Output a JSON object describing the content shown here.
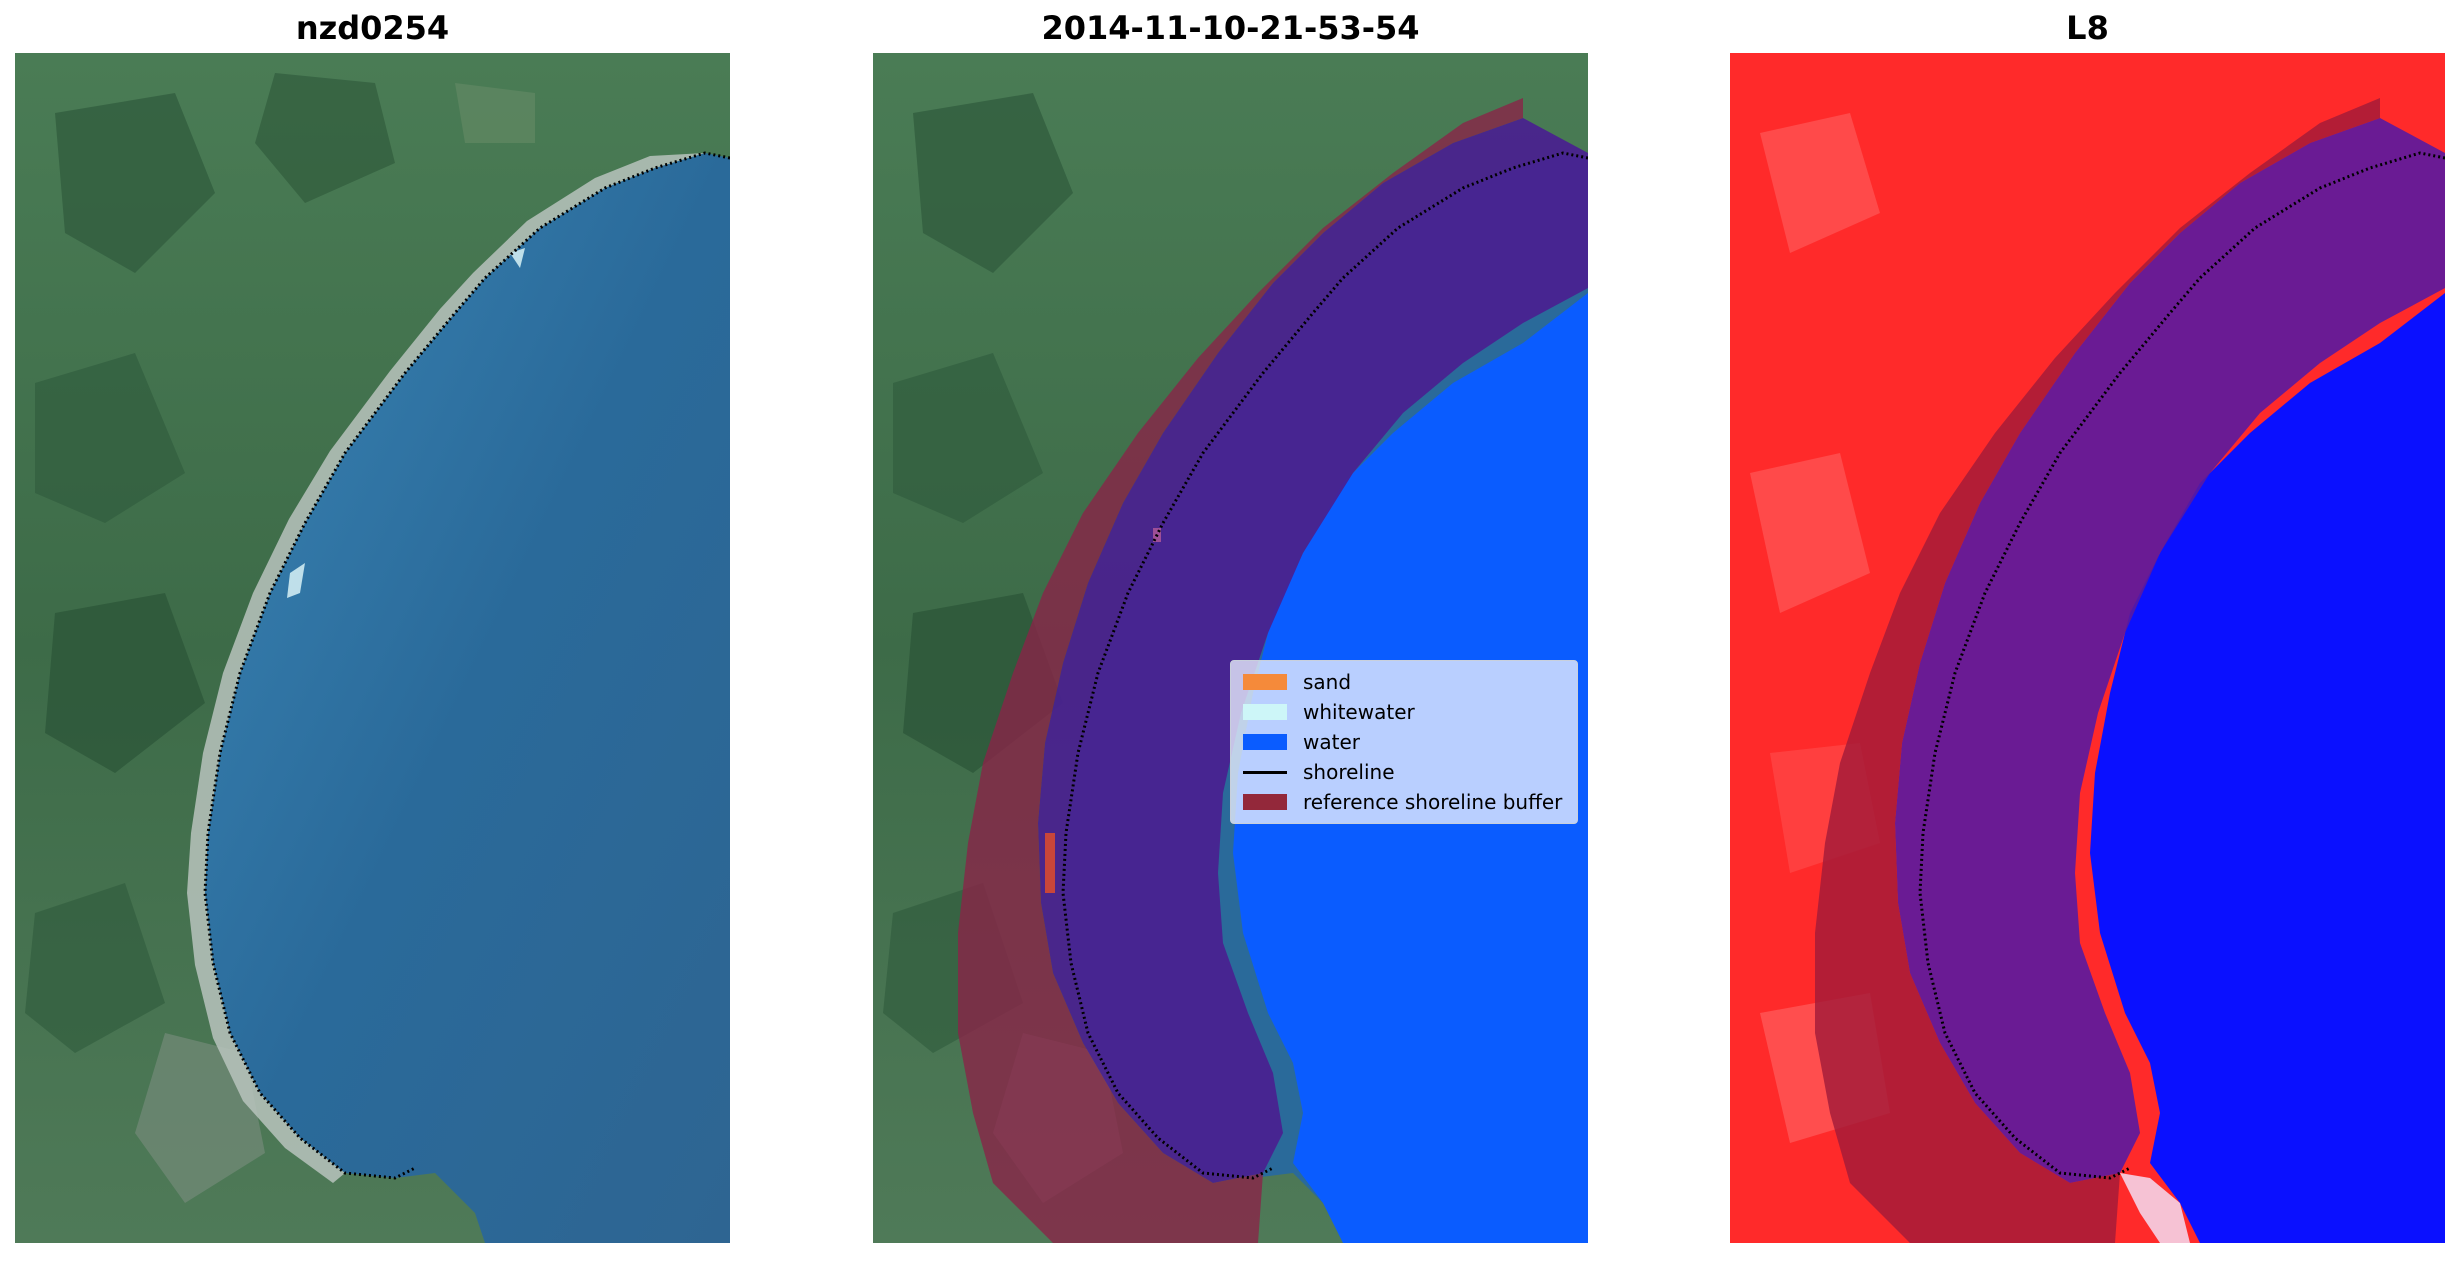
{
  "panels": [
    {
      "title": "nzd0254"
    },
    {
      "title": "2014-11-10-21-53-54"
    },
    {
      "title": "L8"
    }
  ],
  "legend": {
    "items": [
      {
        "label": "sand",
        "kind": "patch",
        "color": "#f58a3a"
      },
      {
        "label": "whitewater",
        "kind": "patch",
        "color": "#cdf6f8"
      },
      {
        "label": "water",
        "kind": "patch",
        "color": "#0a5cff"
      },
      {
        "label": "shoreline",
        "kind": "line",
        "color": "#000000"
      },
      {
        "label": "reference shoreline buffer",
        "kind": "patch",
        "color": "#93283a"
      }
    ]
  },
  "colors": {
    "land_green": "#3f6f4a",
    "sea_blue": "#2a6a9a",
    "classified_water": "#0a5cff",
    "buffer_maroon": "#8a2348",
    "buffer_over_water": "#4a2090",
    "index_red": "#ff2a2a",
    "index_blue": "#0a10ff"
  }
}
